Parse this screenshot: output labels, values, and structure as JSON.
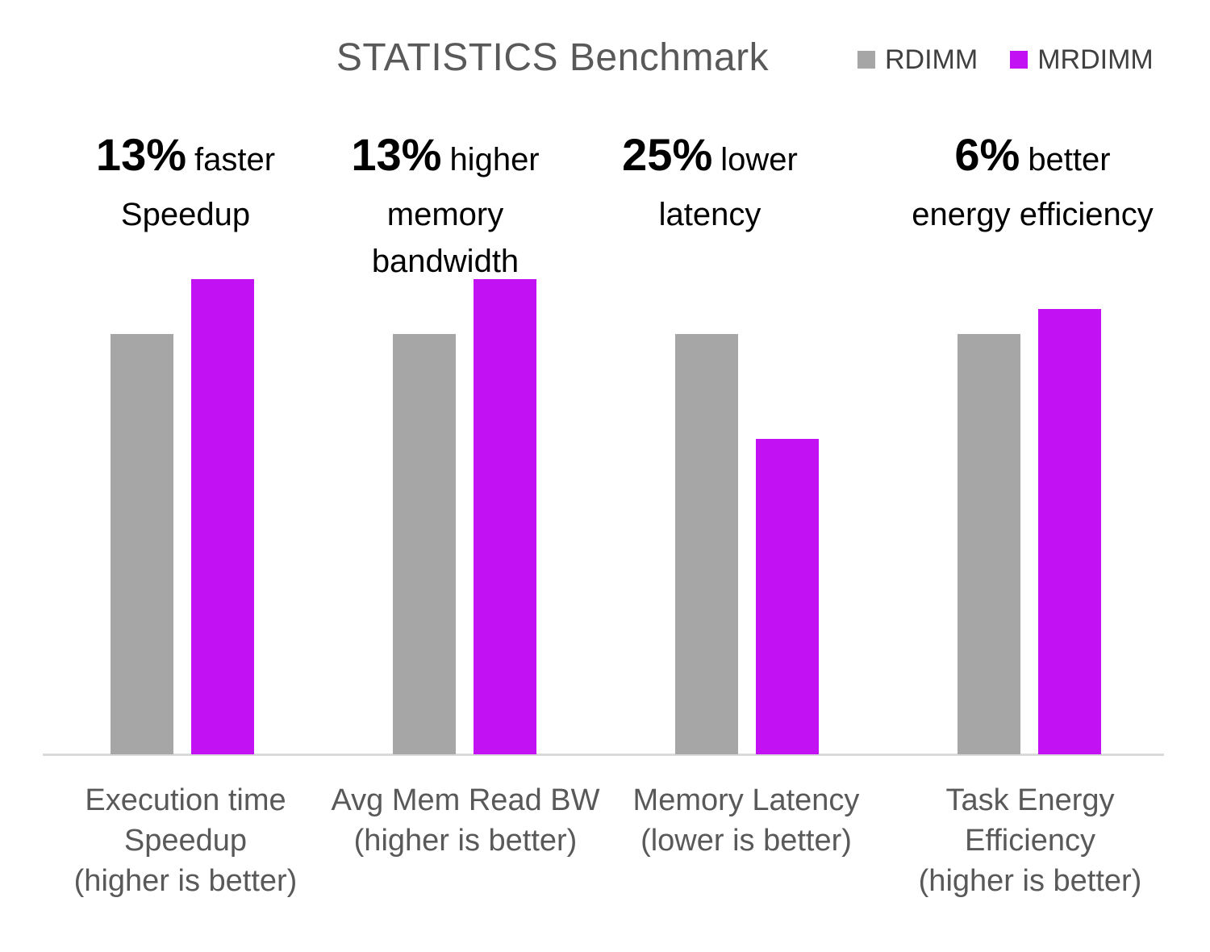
{
  "chart_data": {
    "type": "bar",
    "title": "STATISTICS Benchmark",
    "categories": [
      "Execution time Speedup (higher is better)",
      "Avg Mem Read BW (higher is better)",
      "Memory Latency (lower is better)",
      "Task Energy Efficiency (higher is better)"
    ],
    "categories_lines": [
      [
        "Execution time",
        "Speedup",
        "(higher is better)"
      ],
      [
        "Avg Mem Read BW",
        "(higher is better)"
      ],
      [
        "Memory Latency",
        "(lower is better)"
      ],
      [
        "Task Energy",
        "Efficiency",
        "(higher is better)"
      ]
    ],
    "series": [
      {
        "name": "RDIMM",
        "color": "#A6A6A6",
        "values": [
          1.0,
          1.0,
          1.0,
          1.0
        ]
      },
      {
        "name": "MRDIMM",
        "color": "#C211F2",
        "values": [
          1.13,
          1.13,
          0.75,
          1.06
        ]
      }
    ],
    "ylim": [
      0,
      1.2
    ],
    "grid": false,
    "y_axis_visible": false,
    "legend_position": "top-right"
  },
  "annotations": [
    {
      "pct": "13%",
      "word": "faster",
      "lines": [
        "Speedup"
      ]
    },
    {
      "pct": "13%",
      "word": "higher",
      "lines": [
        "memory",
        "bandwidth"
      ]
    },
    {
      "pct": "25%",
      "word": "lower",
      "lines": [
        "latency"
      ]
    },
    {
      "pct": "6%",
      "word": "better",
      "lines": [
        "energy efficiency"
      ]
    }
  ],
  "colors": {
    "rdimm_bar": "#A6A6A6",
    "mrdimm_bar": "#C211F2",
    "title_text": "#595959",
    "axis_label_text": "#595959",
    "legend_text": "#404040",
    "annotation_text": "#000000",
    "axis_line": "#D9D9D9"
  }
}
